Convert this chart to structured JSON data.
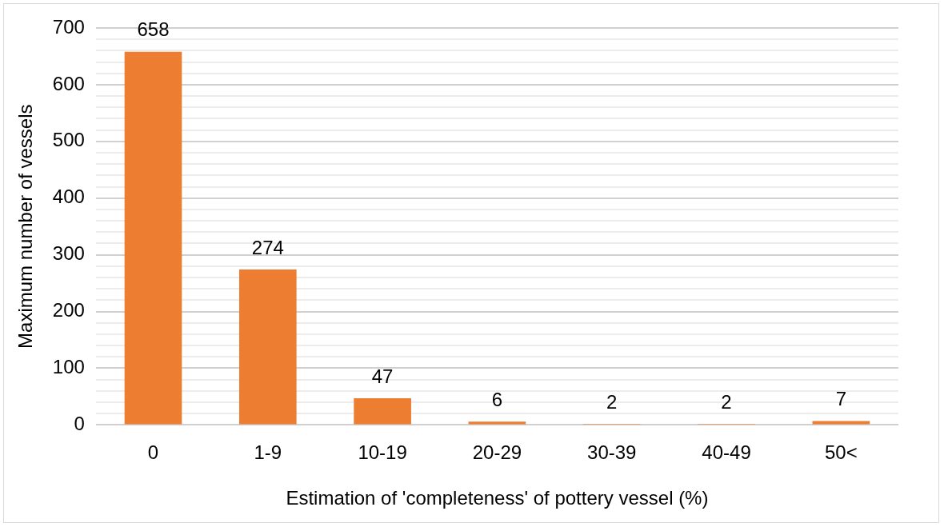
{
  "chart_data": {
    "type": "bar",
    "xlabel": "Estimation of 'completeness' of pottery vessel (%)",
    "ylabel": "Maximum number of vessels",
    "categories": [
      "0",
      "1-9",
      "10-19",
      "20-29",
      "30-39",
      "40-49",
      "50<"
    ],
    "values": [
      658,
      274,
      47,
      6,
      2,
      2,
      7
    ],
    "color": "#ed7d31",
    "data_labels": true,
    "ylim": [
      0,
      700
    ],
    "yticks": [
      0,
      {
        "value": 20,
        "label": null
      },
      {
        "value": 40,
        "label": null
      },
      {
        "value": 60,
        "label": null
      },
      {
        "value": 80,
        "label": null
      },
      100,
      {
        "value": 120,
        "label": null
      },
      {
        "value": 140,
        "label": null
      },
      {
        "value": 160,
        "label": null
      },
      {
        "value": 180,
        "label": null
      },
      200,
      {
        "value": 220,
        "label": null
      },
      {
        "value": 240,
        "label": null
      },
      {
        "value": 260,
        "label": null
      },
      {
        "value": 280,
        "label": null
      },
      300,
      {
        "value": 320,
        "label": null
      },
      {
        "value": 340,
        "label": null
      },
      {
        "value": 360,
        "label": null
      },
      {
        "value": 380,
        "label": null
      },
      400,
      {
        "value": 420,
        "label": null
      },
      {
        "value": 440,
        "label": null
      },
      {
        "value": 460,
        "label": null
      },
      {
        "value": 480,
        "label": null
      },
      500,
      {
        "value": 520,
        "label": null
      },
      {
        "value": 540,
        "label": null
      },
      {
        "value": 560,
        "label": null
      },
      {
        "value": 580,
        "label": null
      },
      600,
      {
        "value": 620,
        "label": null
      },
      {
        "value": 640,
        "label": null
      },
      {
        "value": 660,
        "label": null
      },
      {
        "value": 680,
        "label": null
      },
      700
    ],
    "grid": "y",
    "legend": false
  }
}
